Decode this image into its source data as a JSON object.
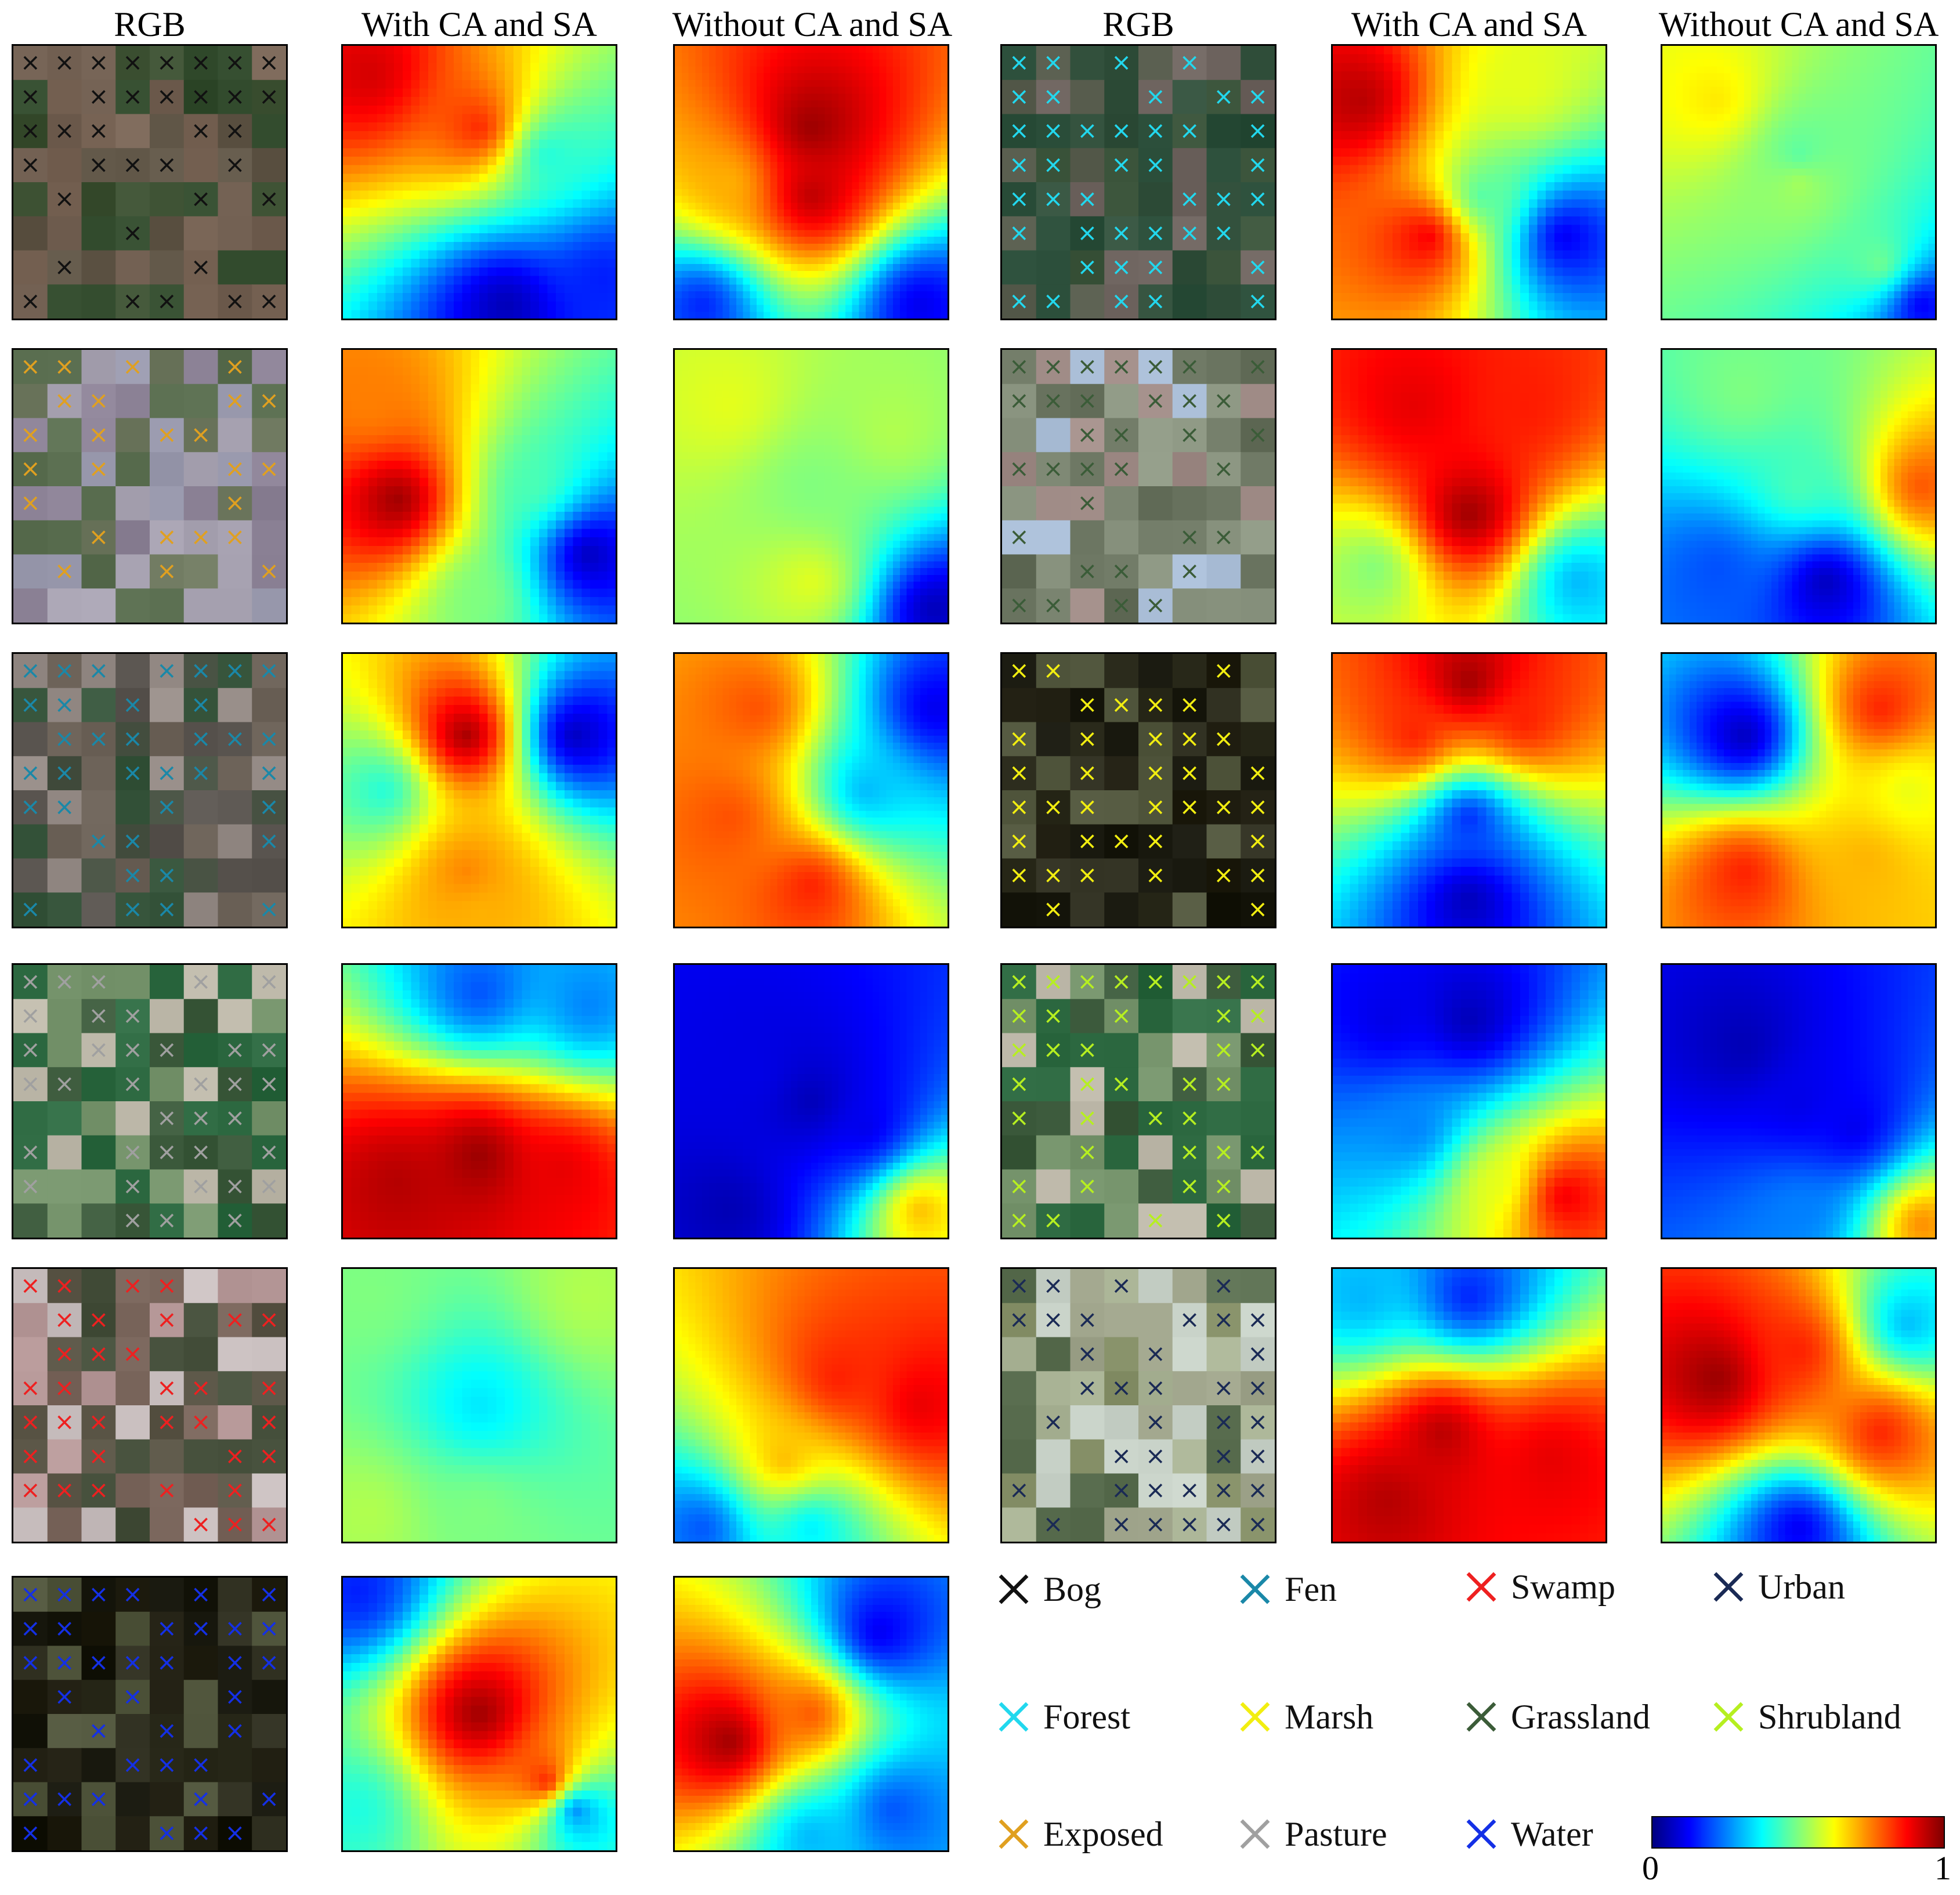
{
  "headers": [
    "RGB",
    "With CA and SA",
    "Without CA and SA",
    "RGB",
    "With CA and SA",
    "Without CA and SA"
  ],
  "legend": [
    {
      "label": "Bog",
      "color": "#111111"
    },
    {
      "label": "Fen",
      "color": "#1a88a8"
    },
    {
      "label": "Swamp",
      "color": "#ee2020"
    },
    {
      "label": "Urban",
      "color": "#1a2a55"
    },
    {
      "label": "Forest",
      "color": "#22d8ee"
    },
    {
      "label": "Marsh",
      "color": "#f2ee10"
    },
    {
      "label": "Grassland",
      "color": "#3b5c38"
    },
    {
      "label": "Shrubland",
      "color": "#b6ef20"
    },
    {
      "label": "Exposed",
      "color": "#e0a020"
    },
    {
      "label": "Pasture",
      "color": "#a0a0a0"
    },
    {
      "label": "Water",
      "color": "#1430e6"
    }
  ],
  "colorbar": {
    "min": "0",
    "max": "1",
    "colormap": "jet"
  },
  "samples": [
    {
      "class": "Bog",
      "rgb": "brown-green",
      "with": [
        [
          0.1,
          0.1,
          0.92
        ],
        [
          0.5,
          0.3,
          0.85
        ],
        [
          0.75,
          0.4,
          0.4
        ],
        [
          0.95,
          0.85,
          0.15
        ],
        [
          0.6,
          0.95,
          0.05
        ]
      ],
      "without": [
        [
          0.5,
          0.3,
          0.98
        ],
        [
          0.5,
          0.55,
          0.95
        ],
        [
          0.2,
          0.5,
          0.7
        ],
        [
          0.1,
          0.95,
          0.15
        ],
        [
          0.9,
          0.95,
          0.1
        ]
      ]
    },
    {
      "class": "Forest",
      "rgb": "dark-green",
      "with": [
        [
          0.1,
          0.2,
          0.95
        ],
        [
          0.35,
          0.7,
          0.9
        ],
        [
          0.7,
          0.15,
          0.6
        ],
        [
          0.85,
          0.7,
          0.1
        ],
        [
          0.55,
          0.55,
          0.45
        ]
      ],
      "without": [
        [
          0.5,
          0.5,
          0.55
        ],
        [
          0.2,
          0.2,
          0.65
        ],
        [
          0.8,
          0.8,
          0.5
        ],
        [
          0.5,
          0.4,
          0.45
        ],
        [
          0.95,
          0.95,
          0.1
        ]
      ]
    },
    {
      "class": "Exposed",
      "rgb": "gray-purple",
      "with": [
        [
          0.2,
          0.55,
          0.98
        ],
        [
          0.1,
          0.2,
          0.75
        ],
        [
          0.5,
          0.9,
          0.5
        ],
        [
          0.9,
          0.75,
          0.05
        ],
        [
          0.7,
          0.5,
          0.45
        ]
      ],
      "without": [
        [
          0.5,
          0.5,
          0.5
        ],
        [
          0.2,
          0.2,
          0.6
        ],
        [
          0.8,
          0.3,
          0.55
        ],
        [
          0.5,
          0.85,
          0.6
        ],
        [
          0.95,
          0.95,
          0.05
        ]
      ]
    },
    {
      "class": "Grassland",
      "rgb": "pink-gray",
      "with": [
        [
          0.5,
          0.6,
          0.98
        ],
        [
          0.3,
          0.2,
          0.9
        ],
        [
          0.7,
          0.2,
          0.85
        ],
        [
          0.15,
          0.8,
          0.5
        ],
        [
          0.9,
          0.85,
          0.3
        ]
      ],
      "without": [
        [
          0.5,
          0.5,
          0.45
        ],
        [
          0.2,
          0.8,
          0.2
        ],
        [
          0.6,
          0.85,
          0.05
        ],
        [
          0.95,
          0.5,
          0.8
        ],
        [
          0.3,
          0.15,
          0.5
        ]
      ]
    },
    {
      "class": "Fen",
      "rgb": "green-brown",
      "with": [
        [
          0.45,
          0.3,
          0.98
        ],
        [
          0.45,
          0.8,
          0.75
        ],
        [
          0.15,
          0.5,
          0.4
        ],
        [
          0.85,
          0.3,
          0.05
        ],
        [
          0.5,
          0.95,
          0.7
        ]
      ],
      "without": [
        [
          0.3,
          0.2,
          0.8
        ],
        [
          0.5,
          0.85,
          0.85
        ],
        [
          0.7,
          0.5,
          0.3
        ],
        [
          0.95,
          0.2,
          0.1
        ],
        [
          0.2,
          0.6,
          0.8
        ]
      ]
    },
    {
      "class": "Marsh",
      "rgb": "dark",
      "with": [
        [
          0.5,
          0.1,
          0.98
        ],
        [
          0.3,
          0.3,
          0.85
        ],
        [
          0.7,
          0.25,
          0.85
        ],
        [
          0.5,
          0.6,
          0.15
        ],
        [
          0.5,
          0.9,
          0.05
        ]
      ],
      "without": [
        [
          0.3,
          0.3,
          0.05
        ],
        [
          0.8,
          0.2,
          0.85
        ],
        [
          0.75,
          0.75,
          0.7
        ],
        [
          0.3,
          0.8,
          0.85
        ],
        [
          0.9,
          0.5,
          0.6
        ]
      ]
    },
    {
      "class": "Pasture",
      "rgb": "green",
      "with": [
        [
          0.5,
          0.7,
          0.98
        ],
        [
          0.2,
          0.8,
          0.95
        ],
        [
          0.8,
          0.75,
          0.9
        ],
        [
          0.5,
          0.1,
          0.2
        ],
        [
          0.9,
          0.15,
          0.25
        ]
      ],
      "without": [
        [
          0.5,
          0.5,
          0.05
        ],
        [
          0.3,
          0.4,
          0.1
        ],
        [
          0.7,
          0.6,
          0.1
        ],
        [
          0.9,
          0.9,
          0.7
        ],
        [
          0.2,
          0.9,
          0.05
        ]
      ]
    },
    {
      "class": "Shrubland",
      "rgb": "green",
      "with": [
        [
          0.85,
          0.85,
          0.9
        ],
        [
          0.6,
          0.8,
          0.6
        ],
        [
          0.3,
          0.6,
          0.25
        ],
        [
          0.5,
          0.2,
          0.05
        ],
        [
          0.2,
          0.2,
          0.1
        ]
      ],
      "without": [
        [
          0.5,
          0.5,
          0.1
        ],
        [
          0.3,
          0.3,
          0.05
        ],
        [
          0.7,
          0.6,
          0.1
        ],
        [
          0.95,
          0.95,
          0.75
        ],
        [
          0.5,
          0.9,
          0.25
        ]
      ]
    },
    {
      "class": "Swamp",
      "rgb": "brown",
      "with": [
        [
          0.1,
          0.1,
          0.5
        ],
        [
          0.9,
          0.1,
          0.55
        ],
        [
          0.5,
          0.9,
          0.5
        ],
        [
          0.1,
          0.9,
          0.55
        ],
        [
          0.5,
          0.5,
          0.35
        ]
      ],
      "without": [
        [
          0.6,
          0.4,
          0.85
        ],
        [
          0.9,
          0.5,
          0.9
        ],
        [
          0.4,
          0.7,
          0.7
        ],
        [
          0.1,
          0.95,
          0.2
        ],
        [
          0.5,
          0.95,
          0.35
        ]
      ]
    },
    {
      "class": "Urban",
      "rgb": "light",
      "with": [
        [
          0.4,
          0.6,
          0.95
        ],
        [
          0.2,
          0.85,
          0.95
        ],
        [
          0.8,
          0.7,
          0.9
        ],
        [
          0.5,
          0.1,
          0.15
        ],
        [
          0.1,
          0.1,
          0.3
        ]
      ],
      "without": [
        [
          0.2,
          0.4,
          0.98
        ],
        [
          0.5,
          0.3,
          0.85
        ],
        [
          0.8,
          0.6,
          0.85
        ],
        [
          0.5,
          0.95,
          0.1
        ],
        [
          0.9,
          0.2,
          0.3
        ]
      ]
    },
    {
      "class": "Water",
      "rgb": "dark",
      "with": [
        [
          0.5,
          0.5,
          0.98
        ],
        [
          0.75,
          0.75,
          0.9
        ],
        [
          0.05,
          0.05,
          0.15
        ],
        [
          0.85,
          0.85,
          0.2
        ],
        [
          0.05,
          0.85,
          0.4
        ]
      ],
      "without": [
        [
          0.2,
          0.6,
          0.98
        ],
        [
          0.5,
          0.5,
          0.8
        ],
        [
          0.75,
          0.2,
          0.1
        ],
        [
          0.8,
          0.85,
          0.2
        ],
        [
          0.5,
          0.95,
          0.3
        ]
      ]
    }
  ]
}
